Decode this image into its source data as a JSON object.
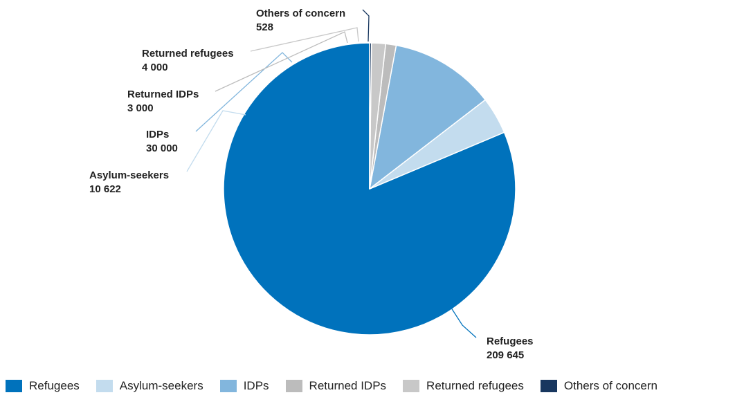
{
  "chart_data": {
    "type": "pie",
    "slices": [
      {
        "label": "Refugees",
        "value": 209645,
        "value_text": "209 645",
        "color": "#0072bc"
      },
      {
        "label": "Asylum-seekers",
        "value": 10622,
        "value_text": "10 622",
        "color": "#c3dcee"
      },
      {
        "label": "IDPs",
        "value": 30000,
        "value_text": "30 000",
        "color": "#82b6dd"
      },
      {
        "label": "Returned IDPs",
        "value": 3000,
        "value_text": "3 000",
        "color": "#bcbcbc"
      },
      {
        "label": "Returned refugees",
        "value": 4000,
        "value_text": "4 000",
        "color": "#c8c8c8"
      },
      {
        "label": "Others of concern",
        "value": 528,
        "value_text": "528",
        "color": "#18375f"
      }
    ],
    "legend_position": "bottom"
  }
}
